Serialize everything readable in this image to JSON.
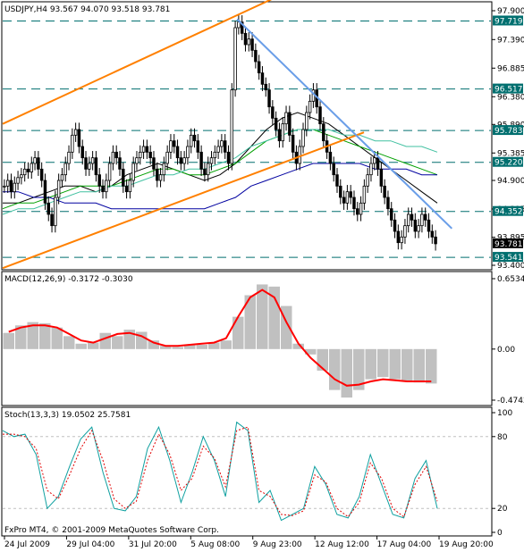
{
  "chart_data": [
    {
      "type": "candlestick",
      "title": "USDJPY,H4  93.567 94.070 93.518 93.781",
      "symbol": "USDJPY",
      "timeframe": "H4",
      "ohlc_last": {
        "open": 93.567,
        "high": 94.07,
        "low": 93.518,
        "close": 93.781
      },
      "ylim": [
        93.4,
        97.9
      ],
      "y_ticks": [
        "97.900",
        "97.390",
        "96.885",
        "96.380",
        "95.890",
        "95.385",
        "94.900",
        "94.395",
        "93.895",
        "93.400"
      ],
      "price_labels": [
        {
          "value": 97.719,
          "text": "97.719",
          "color": "#006f6f"
        },
        {
          "value": 96.517,
          "text": "96.517",
          "color": "#006f6f"
        },
        {
          "value": 95.783,
          "text": "95.783",
          "color": "#006f6f"
        },
        {
          "value": 95.22,
          "text": "95.220",
          "color": "#006f6f"
        },
        {
          "value": 94.352,
          "text": "94.352",
          "color": "#006f6f"
        },
        {
          "value": 93.781,
          "text": "93.781",
          "color": "#000000"
        },
        {
          "value": 93.541,
          "text": "93.541",
          "color": "#006f6f"
        }
      ],
      "hlines": [
        97.719,
        96.517,
        95.783,
        95.22,
        94.352,
        93.541
      ],
      "close_series": [
        94.8,
        94.9,
        94.7,
        94.85,
        94.95,
        95.0,
        95.1,
        95.05,
        95.2,
        95.3,
        95.1,
        94.9,
        94.5,
        94.3,
        94.1,
        94.6,
        94.9,
        95.0,
        95.2,
        95.4,
        95.7,
        95.8,
        95.5,
        95.3,
        95.1,
        95.2,
        95.3,
        95.0,
        94.8,
        94.7,
        94.9,
        95.2,
        95.4,
        95.3,
        95.1,
        94.8,
        94.7,
        94.9,
        95.2,
        95.3,
        95.4,
        95.5,
        95.4,
        95.3,
        95.1,
        94.9,
        95.0,
        95.2,
        95.4,
        95.6,
        95.5,
        95.3,
        95.2,
        95.3,
        95.5,
        95.7,
        95.6,
        95.4,
        95.1,
        95.0,
        95.2,
        95.3,
        95.4,
        95.5,
        95.6,
        95.4,
        95.2,
        96.5,
        97.6,
        97.7,
        97.5,
        97.3,
        97.4,
        97.2,
        97.0,
        96.8,
        96.6,
        96.5,
        96.2,
        96.0,
        95.8,
        95.6,
        95.9,
        96.1,
        95.7,
        95.4,
        95.2,
        95.5,
        95.8,
        96.1,
        96.3,
        96.5,
        96.2,
        95.9,
        95.6,
        95.4,
        95.2,
        95.0,
        94.8,
        94.6,
        94.5,
        94.7,
        94.6,
        94.4,
        94.3,
        94.5,
        94.8,
        95.0,
        95.2,
        95.3,
        95.1,
        94.8,
        94.6,
        94.4,
        94.2,
        94.0,
        93.8,
        93.9,
        94.1,
        94.3,
        94.2,
        94.0,
        94.1,
        94.3,
        94.2,
        94.0,
        93.9,
        93.78
      ],
      "overlays": [
        {
          "name": "MA fast",
          "color": "#000000",
          "values": [
            94.5,
            94.5,
            94.6,
            94.7,
            94.8,
            94.8,
            94.7,
            94.8,
            95.0,
            95.1,
            95.2,
            95.1,
            95.0,
            94.9,
            95.0,
            95.2,
            95.5,
            95.8,
            96.0,
            96.1,
            96.0,
            95.9,
            95.7,
            95.5,
            95.3,
            95.1,
            94.9,
            94.7,
            94.5
          ]
        },
        {
          "name": "MA mid",
          "color": "#00a000",
          "values": [
            94.4,
            94.5,
            94.5,
            94.6,
            94.7,
            94.8,
            94.8,
            94.8,
            94.9,
            95.0,
            95.1,
            95.1,
            95.0,
            95.0,
            95.1,
            95.2,
            95.4,
            95.6,
            95.7,
            95.8,
            95.8,
            95.7,
            95.6,
            95.5,
            95.4,
            95.3,
            95.2,
            95.1,
            95.0
          ]
        },
        {
          "name": "MA slow",
          "color": "#40c0a0",
          "values": [
            94.3,
            94.4,
            94.4,
            94.5,
            94.6,
            94.7,
            94.7,
            94.8,
            94.8,
            94.9,
            95.0,
            95.0,
            95.1,
            95.1,
            95.2,
            95.3,
            95.5,
            95.6,
            95.7,
            95.8,
            95.8,
            95.8,
            95.7,
            95.7,
            95.6,
            95.6,
            95.5,
            95.5,
            95.4
          ]
        },
        {
          "name": "MA long",
          "color": "#0000a0",
          "values": [
            94.7,
            94.7,
            94.6,
            94.6,
            94.5,
            94.5,
            94.5,
            94.4,
            94.4,
            94.4,
            94.4,
            94.4,
            94.4,
            94.4,
            94.5,
            94.6,
            94.8,
            94.9,
            95.0,
            95.1,
            95.2,
            95.2,
            95.2,
            95.2,
            95.1,
            95.1,
            95.1,
            95.0,
            95.0
          ]
        }
      ],
      "trendlines": [
        {
          "name": "channel-upper",
          "color": "#ff8000",
          "from": {
            "x": 0.0,
            "y": 95.9
          },
          "to": {
            "x": 0.55,
            "y": 98.1
          }
        },
        {
          "name": "channel-lower",
          "color": "#ff8000",
          "from": {
            "x": 0.0,
            "y": 93.35
          },
          "to": {
            "x": 0.74,
            "y": 95.75
          }
        },
        {
          "name": "downtrend",
          "color": "#6a9ee8",
          "from": {
            "x": 0.48,
            "y": 97.75
          },
          "to": {
            "x": 0.92,
            "y": 94.05
          }
        }
      ]
    },
    {
      "type": "bar",
      "title": "MACD(12,26,9) -0.3172 -0.3030",
      "ylim": [
        -0.4742,
        0.6534
      ],
      "y_ticks": [
        "0.6534",
        "0.00",
        "-0.4742"
      ],
      "histogram_color": "#c0c0c0",
      "signal_color": "#ff0000",
      "histogram": [
        0.15,
        0.22,
        0.25,
        0.24,
        0.2,
        0.12,
        0.05,
        0.06,
        0.15,
        0.12,
        0.18,
        0.16,
        0.08,
        0.03,
        0.02,
        0.04,
        0.04,
        0.06,
        0.08,
        0.3,
        0.5,
        0.6,
        0.58,
        0.4,
        0.05,
        -0.05,
        -0.2,
        -0.38,
        -0.45,
        -0.38,
        -0.28,
        -0.26,
        -0.28,
        -0.3,
        -0.31,
        -0.32
      ],
      "signal": [
        0.16,
        0.2,
        0.22,
        0.22,
        0.2,
        0.14,
        0.08,
        0.06,
        0.1,
        0.14,
        0.15,
        0.12,
        0.06,
        0.03,
        0.03,
        0.04,
        0.05,
        0.06,
        0.1,
        0.3,
        0.48,
        0.55,
        0.48,
        0.25,
        0.05,
        -0.08,
        -0.18,
        -0.28,
        -0.34,
        -0.33,
        -0.3,
        -0.28,
        -0.29,
        -0.3,
        -0.3,
        -0.3
      ]
    },
    {
      "type": "line",
      "title": "Stoch(13,3,3) 19.0502 25.7581",
      "ylim": [
        0,
        100
      ],
      "y_ticks": [
        "100",
        "80",
        "20",
        "0"
      ],
      "levels": [
        80,
        20
      ],
      "series": [
        {
          "name": "%K",
          "color": "#0fa0a0",
          "values": [
            85,
            80,
            82,
            65,
            20,
            30,
            55,
            78,
            88,
            50,
            20,
            18,
            30,
            70,
            88,
            60,
            25,
            50,
            80,
            60,
            30,
            92,
            85,
            25,
            35,
            10,
            15,
            20,
            55,
            40,
            15,
            12,
            30,
            65,
            40,
            15,
            12,
            45,
            60,
            20
          ]
        },
        {
          "name": "%D",
          "color": "#e00000",
          "values": [
            82,
            82,
            80,
            70,
            35,
            28,
            48,
            70,
            85,
            60,
            28,
            20,
            26,
            60,
            82,
            65,
            35,
            45,
            72,
            62,
            38,
            85,
            88,
            35,
            30,
            15,
            14,
            18,
            48,
            42,
            20,
            13,
            25,
            58,
            45,
            20,
            13,
            40,
            55,
            26
          ]
        }
      ]
    }
  ],
  "x_labels": [
    "24 Jul 2009",
    "29 Jul 04:00",
    "31 Jul 20:00",
    "5 Aug 08:00",
    "9 Aug 23:00",
    "12 Aug 12:00",
    "17 Aug 04:00",
    "19 Aug 20:00"
  ],
  "copyright": "FxPro MT4, © 2001-2009 MetaQuotes Software Corp."
}
